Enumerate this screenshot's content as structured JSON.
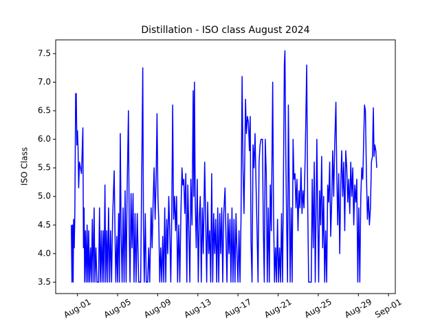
{
  "chart_data": {
    "type": "line",
    "title": "Distillation - ISO class August 2024",
    "y_label": "ISO Class",
    "x": [
      0.39,
      0.45,
      0.51,
      0.57,
      0.62,
      0.68,
      0.74,
      0.82,
      0.88,
      0.94,
      1.0,
      1.06,
      1.12,
      1.2,
      1.3,
      1.4,
      1.54,
      1.6,
      1.66,
      1.72,
      1.8,
      1.88,
      1.96,
      2.04,
      2.12,
      2.2,
      2.3,
      2.38,
      2.48,
      2.56,
      2.66,
      2.74,
      2.84,
      2.94,
      3.1,
      3.2,
      3.28,
      3.38,
      3.46,
      3.56,
      3.64,
      3.74,
      3.82,
      3.92,
      4.0,
      4.1,
      4.2,
      4.3,
      4.4,
      4.5,
      4.66,
      4.74,
      4.82,
      4.92,
      5.0,
      5.1,
      5.18,
      5.27,
      5.35,
      5.45,
      5.55,
      5.65,
      5.75,
      5.85,
      5.95,
      6.08,
      6.16,
      6.24,
      6.34,
      6.44,
      6.54,
      6.64,
      6.74,
      6.84,
      6.96,
      7.1,
      7.3,
      7.51,
      7.58,
      7.66,
      7.76,
      7.86,
      8.0,
      8.1,
      8.2,
      8.34,
      8.44,
      8.54,
      8.64,
      8.74,
      8.84,
      8.93,
      9.02,
      9.1,
      9.2,
      9.3,
      9.4,
      9.5,
      9.6,
      9.7,
      9.8,
      9.9,
      10.0,
      10.1,
      10.2,
      10.3,
      10.4,
      10.49,
      10.58,
      10.68,
      10.78,
      10.88,
      10.98,
      11.1,
      11.2,
      11.32,
      11.42,
      11.5,
      11.6,
      11.7,
      11.8,
      11.9,
      12.0,
      12.1,
      12.2,
      12.3,
      12.42,
      12.53,
      12.6,
      12.66,
      12.74,
      12.84,
      12.94,
      13.04,
      13.14,
      13.24,
      13.34,
      13.44,
      13.54,
      13.68,
      13.78,
      13.88,
      13.98,
      14.08,
      14.18,
      14.28,
      14.38,
      14.48,
      14.58,
      14.68,
      14.78,
      14.88,
      14.98,
      15.08,
      15.18,
      15.28,
      15.38,
      15.48,
      15.58,
      15.71,
      15.8,
      15.9,
      16.0,
      16.1,
      16.2,
      16.3,
      16.4,
      16.5,
      16.6,
      16.7,
      16.8,
      16.9,
      17.0,
      17.1,
      17.2,
      17.3,
      17.41,
      17.5,
      17.6,
      17.75,
      17.84,
      17.94,
      18.04,
      18.14,
      18.22,
      18.3,
      18.4,
      18.5,
      18.6,
      18.7,
      18.8,
      18.9,
      19.0,
      19.1,
      19.2,
      19.3,
      19.44,
      19.52,
      19.62,
      19.72,
      19.82,
      19.92,
      20.02,
      20.12,
      20.22,
      20.32,
      20.46,
      20.54,
      20.64,
      20.74,
      20.84,
      20.94,
      21.04,
      21.14,
      21.24,
      21.34,
      21.44,
      21.54,
      21.62,
      21.68,
      21.76,
      21.86,
      21.94,
      22.02,
      22.1,
      22.2,
      22.3,
      22.4,
      22.49,
      22.58,
      22.68,
      22.78,
      22.88,
      22.98,
      23.08,
      23.18,
      23.28,
      23.38,
      23.48,
      23.58,
      23.7,
      23.85,
      23.94,
      24.04,
      24.14,
      24.3,
      24.4,
      24.5,
      24.6,
      24.7,
      24.86,
      24.94,
      25.04,
      25.14,
      25.24,
      25.34,
      25.44,
      25.54,
      25.64,
      25.74,
      25.84,
      25.94,
      26.04,
      26.14,
      26.24,
      26.34,
      26.44,
      26.54,
      26.64,
      26.76,
      26.84,
      26.94,
      27.04,
      27.14,
      27.24,
      27.34,
      27.44,
      27.54,
      27.64,
      27.74,
      27.84,
      27.94,
      28.04,
      28.14,
      28.24,
      28.34,
      28.44,
      28.54,
      28.64,
      28.74,
      28.84,
      28.94,
      29.04,
      29.14,
      29.24,
      29.34,
      29.44,
      29.53,
      29.61,
      29.7,
      29.8,
      29.9,
      30.0,
      30.1,
      30.2,
      30.3,
      30.4,
      30.49,
      30.56,
      30.64,
      30.74,
      30.83
    ],
    "series": [
      {
        "color": "#0000ff",
        "values": [
          4.5,
          3.5,
          4.5,
          3.5,
          4.6,
          4.1,
          4.7,
          6.8,
          6.8,
          5.9,
          6.15,
          5.85,
          5.15,
          5.6,
          5.5,
          5.4,
          6.2,
          4.1,
          4.8,
          3.5,
          4.4,
          3.5,
          4.5,
          3.5,
          4.4,
          3.5,
          4.1,
          3.5,
          4.6,
          3.5,
          4.8,
          3.5,
          4.1,
          3.5,
          3.5,
          4.8,
          3.5,
          4.4,
          3.5,
          4.4,
          3.5,
          5.2,
          3.5,
          4.4,
          3.5,
          4.8,
          3.5,
          4.4,
          3.5,
          4.6,
          5.45,
          4.4,
          3.5,
          4.3,
          3.5,
          4.7,
          3.5,
          6.1,
          4.4,
          3.5,
          4.8,
          3.5,
          5.1,
          3.5,
          5.1,
          6.5,
          4.4,
          3.5,
          5.05,
          4.1,
          5.05,
          3.5,
          4.7,
          3.5,
          4.7,
          3.5,
          3.5,
          7.25,
          4.4,
          3.5,
          4.7,
          3.5,
          3.5,
          4.1,
          3.5,
          4.8,
          4.1,
          4.9,
          5.5,
          4.6,
          5.3,
          6.45,
          5.0,
          4.6,
          3.5,
          4.1,
          3.5,
          4.3,
          3.5,
          4.8,
          3.5,
          4.6,
          4.0,
          5.0,
          4.4,
          3.5,
          4.7,
          6.6,
          4.6,
          5.0,
          4.4,
          5.0,
          3.5,
          4.5,
          3.5,
          4.8,
          5.5,
          5.2,
          5.3,
          4.7,
          5.4,
          3.5,
          5.2,
          4.4,
          3.5,
          5.3,
          4.5,
          6.85,
          5.0,
          7.0,
          4.9,
          4.1,
          5.3,
          3.5,
          4.6,
          5.0,
          3.5,
          4.8,
          4.0,
          5.6,
          4.6,
          3.5,
          4.9,
          4.0,
          4.4,
          3.5,
          5.4,
          3.5,
          4.7,
          4.0,
          4.6,
          3.5,
          4.8,
          3.5,
          4.7,
          4.0,
          4.8,
          3.5,
          4.7,
          5.15,
          4.3,
          3.5,
          4.7,
          4.0,
          4.6,
          3.5,
          4.8,
          3.5,
          4.6,
          3.5,
          4.7,
          4.0,
          3.5,
          4.4,
          3.5,
          4.6,
          7.1,
          5.5,
          4.7,
          6.7,
          6.1,
          6.4,
          6.3,
          5.8,
          6.4,
          4.2,
          3.5,
          5.9,
          5.5,
          6.1,
          5.2,
          4.4,
          3.5,
          5.6,
          5.9,
          6.0,
          6.0,
          4.5,
          3.5,
          6.0,
          5.4,
          3.5,
          4.8,
          3.5,
          5.2,
          4.4,
          7.0,
          4.8,
          3.5,
          4.1,
          3.5,
          4.6,
          3.5,
          4.1,
          3.5,
          4.7,
          3.5,
          5.5,
          7.3,
          7.55,
          5.8,
          4.4,
          3.5,
          6.6,
          5.3,
          3.5,
          4.8,
          3.5,
          6.0,
          5.3,
          5.4,
          4.8,
          5.3,
          4.4,
          5.1,
          4.8,
          5.5,
          4.7,
          5.1,
          4.8,
          5.7,
          7.3,
          5.0,
          3.5,
          3.5,
          3.5,
          5.3,
          4.1,
          5.6,
          3.5,
          6.0,
          4.8,
          3.5,
          5.1,
          4.5,
          5.7,
          4.1,
          5.0,
          3.5,
          4.4,
          3.5,
          5.2,
          4.9,
          5.6,
          4.3,
          4.9,
          5.8,
          5.0,
          5.9,
          6.65,
          5.5,
          4.5,
          5.4,
          4.0,
          5.2,
          5.8,
          5.0,
          5.6,
          4.4,
          5.8,
          5.5,
          4.9,
          5.3,
          4.7,
          5.6,
          5.0,
          5.5,
          4.5,
          5.2,
          4.9,
          5.3,
          3.5,
          4.8,
          3.5,
          5.0,
          5.5,
          5.3,
          6.0,
          6.6,
          6.5,
          5.4,
          4.6,
          5.0,
          4.5,
          4.8,
          5.6,
          5.7,
          6.55,
          5.7,
          5.9,
          5.8,
          5.5
        ]
      }
    ],
    "xlim": [
      -1.17,
      32.68
    ],
    "xticks": [
      {
        "value": 1,
        "label": "Aug-01"
      },
      {
        "value": 5,
        "label": "Aug-05"
      },
      {
        "value": 9,
        "label": "Aug-09"
      },
      {
        "value": 13,
        "label": "Aug-13"
      },
      {
        "value": 17,
        "label": "Aug-17"
      },
      {
        "value": 21,
        "label": "Aug-21"
      },
      {
        "value": 25,
        "label": "Aug-25"
      },
      {
        "value": 29,
        "label": "Aug-29"
      },
      {
        "value": 32,
        "label": "Sep-01"
      }
    ],
    "ylim": [
      3.3,
      7.74
    ],
    "yticks": [
      3.5,
      {
        "value": 4,
        "label": "4.0"
      },
      4.5,
      {
        "value": 5,
        "label": "5.0"
      },
      5.5,
      {
        "value": 6,
        "label": "6.0"
      },
      6.5,
      {
        "value": 7,
        "label": "7.0"
      },
      7.5
    ]
  }
}
